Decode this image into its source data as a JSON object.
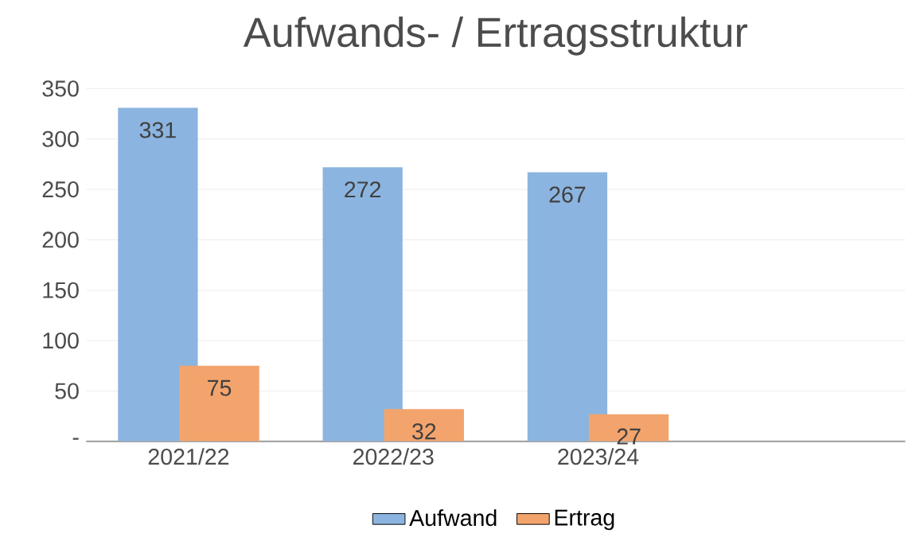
{
  "chart_data": {
    "type": "bar",
    "title": "Aufwands- / Ertragsstruktur",
    "categories": [
      "2021/22",
      "2022/23",
      "2023/24",
      null
    ],
    "series": [
      {
        "name": "Aufwand",
        "color": "#8bb5e0",
        "values": [
          331,
          272,
          267,
          null
        ]
      },
      {
        "name": "Ertrag",
        "color": "#f3a46c",
        "values": [
          75,
          32,
          27,
          null
        ]
      }
    ],
    "ylim": [
      0,
      350
    ],
    "yticks": [
      {
        "value": 0,
        "label": "-"
      },
      50,
      100,
      150,
      200,
      250,
      300,
      350
    ],
    "grid": "y",
    "legend": "bottom",
    "data_labels": true
  }
}
